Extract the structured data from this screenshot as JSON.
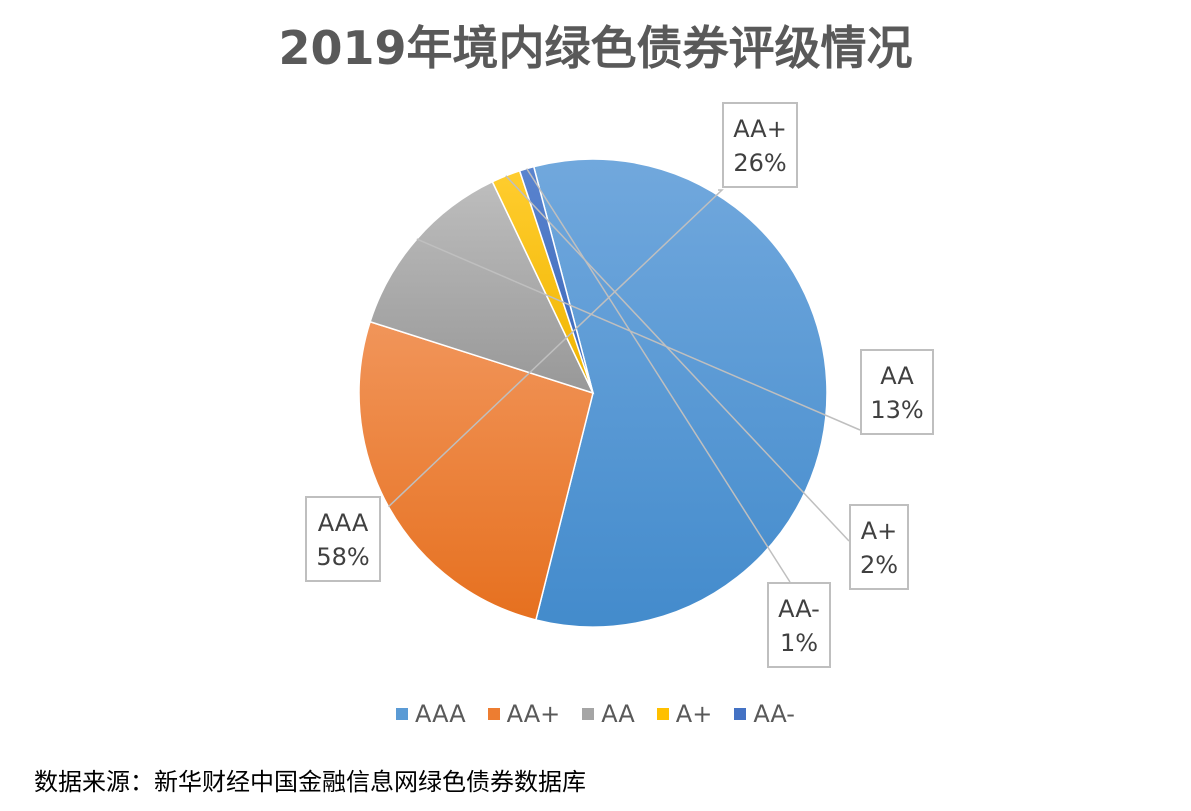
{
  "chart_data": {
    "type": "pie",
    "title": "2019年境内绿色债券评级情况",
    "slices": [
      {
        "name": "AAA",
        "value": 58,
        "label": "58%",
        "color": "#5b9bd5"
      },
      {
        "name": "AA+",
        "value": 26,
        "label": "26%",
        "color": "#ed7d31"
      },
      {
        "name": "AA",
        "value": 13,
        "label": "13%",
        "color": "#a5a5a5"
      },
      {
        "name": "A+",
        "value": 2,
        "label": "2%",
        "color": "#ffc000"
      },
      {
        "name": "AA-",
        "value": 1,
        "label": "1%",
        "color": "#4472c4"
      }
    ],
    "legend_position": "bottom"
  },
  "source_note": "数据来源：新华财经中国金融信息网绿色债券数据库"
}
